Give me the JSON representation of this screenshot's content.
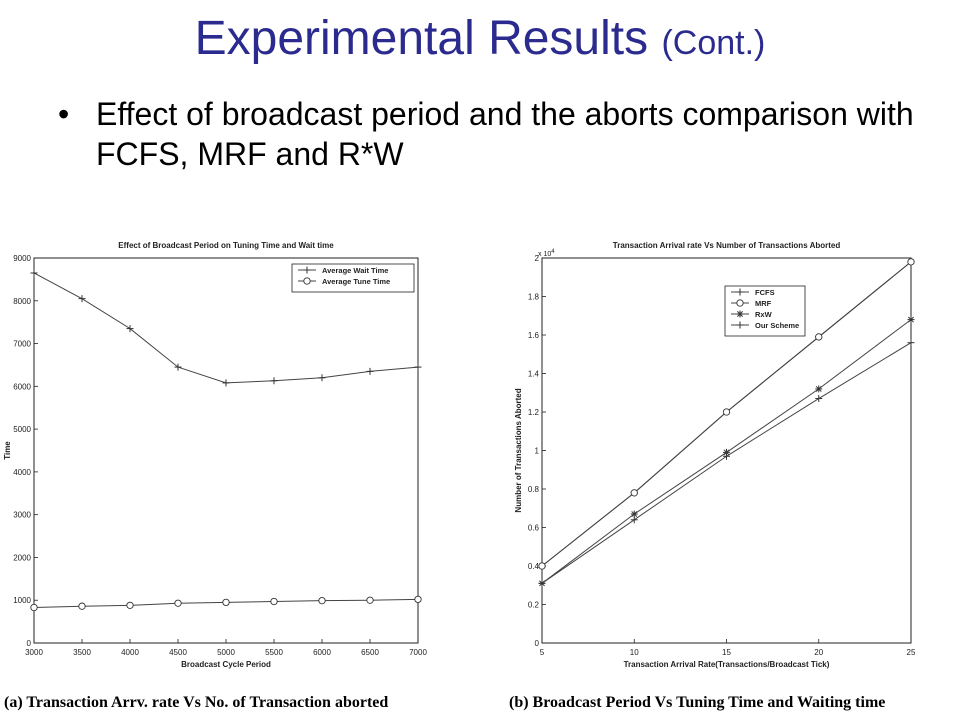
{
  "slide": {
    "title_main": "Experimental Results",
    "title_sub": "(Cont.)",
    "bullet_symbol": "•",
    "bullet_text": "Effect of broadcast period and the aborts comparison with FCFS, MRF and R*W"
  },
  "captions": {
    "left": "(a) Transaction Arrv. rate Vs No. of Transaction aborted",
    "right": "(b) Broadcast Period Vs Tuning Time and Waiting time"
  },
  "chart_data": [
    {
      "type": "line",
      "title": "Effect of Broadcast Period on Tuning Time and Wait time",
      "xlabel": "Broadcast Cycle Period",
      "ylabel": "Time",
      "xlim": [
        3000,
        7000
      ],
      "ylim": [
        0,
        9000
      ],
      "x": [
        3000,
        3500,
        4000,
        4500,
        5000,
        5500,
        6000,
        6500,
        7000
      ],
      "xticks": [
        3000,
        3500,
        4000,
        4500,
        5000,
        5500,
        6000,
        6500,
        7000
      ],
      "yticks": [
        0,
        1000,
        2000,
        3000,
        4000,
        5000,
        6000,
        7000,
        8000,
        9000
      ],
      "legend_position": "top-right",
      "grid": false,
      "series": [
        {
          "name": "Average Wait Time",
          "marker": "plus",
          "values": [
            8650,
            8050,
            7350,
            6450,
            6080,
            6130,
            6200,
            6350,
            6450
          ]
        },
        {
          "name": "Average Tune Time",
          "marker": "circle",
          "values": [
            830,
            860,
            880,
            930,
            950,
            970,
            990,
            1000,
            1020
          ]
        }
      ]
    },
    {
      "type": "line",
      "title": "Transaction Arrival rate Vs Number of Transactions Aborted",
      "xlabel": "Transaction Arrival Rate(Transactions/Broadcast Tick)",
      "ylabel": "Number of Transactions Aborted",
      "multiplier_label": "x 10",
      "multiplier_exponent": "4",
      "xlim": [
        5,
        25
      ],
      "ylim": [
        0,
        2
      ],
      "x": [
        5,
        10,
        15,
        20,
        25
      ],
      "xticks": [
        5,
        10,
        15,
        20,
        25
      ],
      "yticks": [
        0,
        0.2,
        0.4,
        0.6,
        0.8,
        1,
        1.2,
        1.4,
        1.6,
        1.8,
        2
      ],
      "legend_position": "top-left",
      "grid": false,
      "series": [
        {
          "name": "FCFS",
          "marker": "plus",
          "values": [
            0.4,
            0.78,
            1.2,
            1.59,
            1.98
          ]
        },
        {
          "name": "MRF",
          "marker": "circle",
          "values": [
            0.4,
            0.78,
            1.2,
            1.59,
            1.98
          ]
        },
        {
          "name": "RxW",
          "marker": "star",
          "values": [
            0.31,
            0.67,
            0.99,
            1.32,
            1.68
          ]
        },
        {
          "name": "Our Scheme",
          "marker": "plus",
          "values": [
            0.31,
            0.64,
            0.97,
            1.27,
            1.56
          ]
        }
      ]
    }
  ]
}
